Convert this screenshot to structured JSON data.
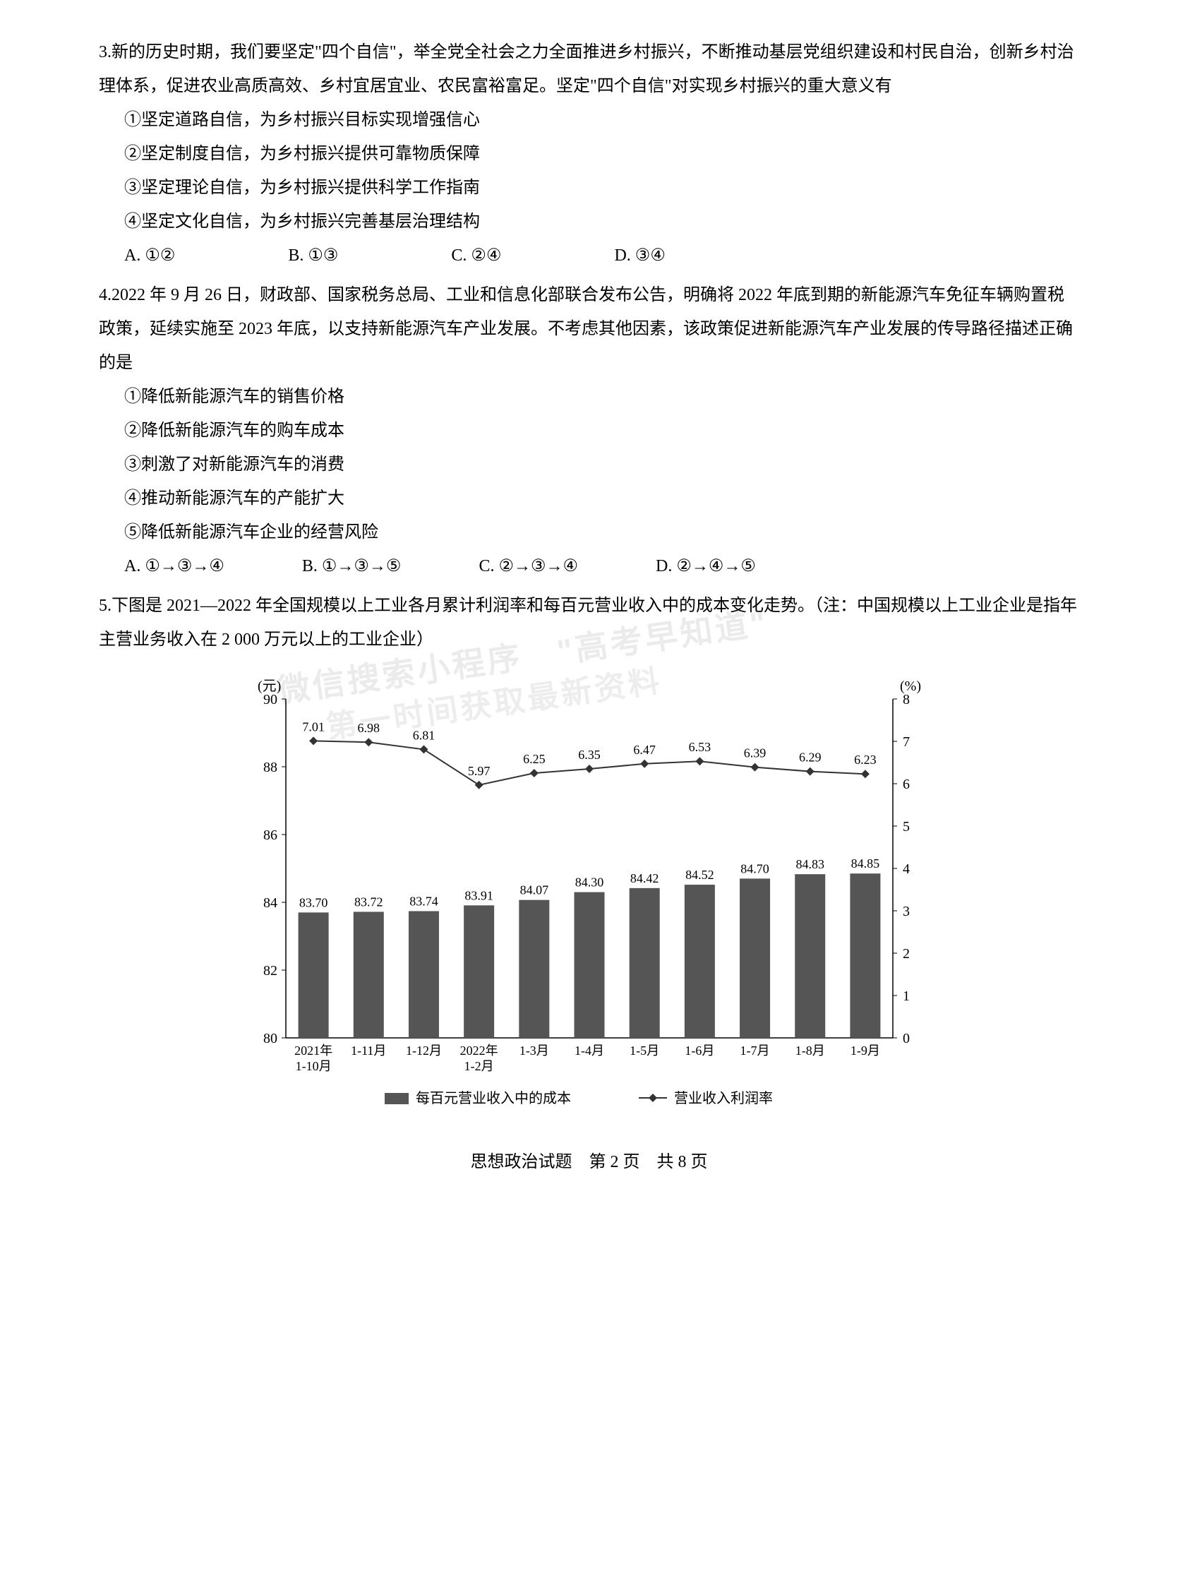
{
  "q3": {
    "num": "3.",
    "stem": "新的历史时期，我们要坚定\"四个自信\"，举全党全社会之力全面推进乡村振兴，不断推动基层党组织建设和村民自治，创新乡村治理体系，促进农业高质高效、乡村宜居宜业、农民富裕富足。坚定\"四个自信\"对实现乡村振兴的重大意义有",
    "items": [
      "①坚定道路自信，为乡村振兴目标实现增强信心",
      "②坚定制度自信，为乡村振兴提供可靠物质保障",
      "③坚定理论自信，为乡村振兴提供科学工作指南",
      "④坚定文化自信，为乡村振兴完善基层治理结构"
    ],
    "opts": [
      "A. ①②",
      "B. ①③",
      "C. ②④",
      "D. ③④"
    ]
  },
  "q4": {
    "num": "4.",
    "stem": "2022 年 9 月 26 日，财政部、国家税务总局、工业和信息化部联合发布公告，明确将 2022 年底到期的新能源汽车免征车辆购置税政策，延续实施至 2023 年底，以支持新能源汽车产业发展。不考虑其他因素，该政策促进新能源汽车产业发展的传导路径描述正确的是",
    "items": [
      "①降低新能源汽车的销售价格",
      "②降低新能源汽车的购车成本",
      "③刺激了对新能源汽车的消费",
      "④推动新能源汽车的产能扩大",
      "⑤降低新能源汽车企业的经营风险"
    ],
    "opts": [
      "A. ①→③→④",
      "B. ①→③→⑤",
      "C. ②→③→④",
      "D. ②→④→⑤"
    ]
  },
  "q5": {
    "num": "5.",
    "stem": "下图是 2021—2022 年全国规模以上工业各月累计利润率和每百元营业收入中的成本变化走势。（注：中国规模以上工业企业是指年主营业务收入在 2 000 万元以上的工业企业）"
  },
  "watermark1": "微信搜索小程序　\"高考早知道\"",
  "watermark2": "第一时间获取最新资料",
  "chart": {
    "type": "bar+line",
    "categories": [
      "2021年\n1-10月",
      "1-11月",
      "1-12月",
      "2022年\n1-2月",
      "1-3月",
      "1-4月",
      "1-5月",
      "1-6月",
      "1-7月",
      "1-8月",
      "1-9月"
    ],
    "bar_values": [
      83.7,
      83.72,
      83.74,
      83.91,
      84.07,
      84.3,
      84.42,
      84.52,
      84.7,
      84.83,
      84.85
    ],
    "line_values": [
      7.01,
      6.98,
      6.81,
      5.97,
      6.25,
      6.35,
      6.47,
      6.53,
      6.39,
      6.29,
      6.23
    ],
    "y_left": {
      "label": "(元)",
      "min": 80,
      "max": 90,
      "step": 2
    },
    "y_right": {
      "label": "(%)",
      "min": 0,
      "max": 8,
      "step": 1
    },
    "legend": [
      "每百元营业收入中的成本",
      "营业收入利润率"
    ],
    "bar_color": "#555555",
    "line_color": "#333333",
    "grid_color": "#000000",
    "background": "#ffffff",
    "bar_width": 0.55,
    "font_size": 20
  },
  "footer": "思想政治试题　第 2 页　共 8 页"
}
